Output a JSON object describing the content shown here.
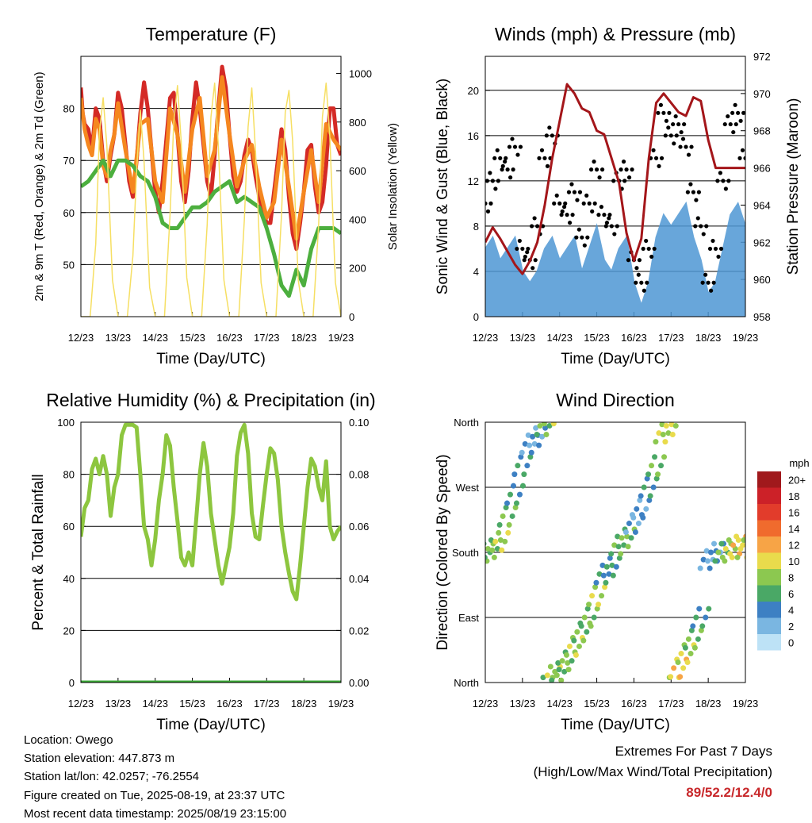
{
  "chart_data": [
    {
      "type": "line",
      "title": "Temperature (F)",
      "xlabel": "Time (Day/UTC)",
      "ylabel": "2m & 9m T (Red, Orange) & 2m Td (Green)",
      "y2label": "Solar Insolation (Yellow)",
      "xticks": [
        "12/23",
        "13/23",
        "14/23",
        "15/23",
        "16/23",
        "17/23",
        "18/23",
        "19/23"
      ],
      "xlim": [
        0,
        7
      ],
      "ylim": [
        40,
        90
      ],
      "yticks": [
        50,
        60,
        70,
        80
      ],
      "y2lim": [
        0,
        1070
      ],
      "y2ticks": [
        0,
        200,
        400,
        600,
        800,
        1000
      ],
      "grid": true,
      "series": [
        {
          "name": "2m T",
          "color": "#d42a26",
          "x": [
            0,
            0.05,
            0.1,
            0.2,
            0.3,
            0.4,
            0.5,
            0.6,
            0.7,
            0.8,
            0.9,
            1.0,
            1.1,
            1.2,
            1.3,
            1.4,
            1.5,
            1.6,
            1.7,
            1.8,
            1.9,
            2.0,
            2.1,
            2.2,
            2.3,
            2.4,
            2.5,
            2.6,
            2.7,
            2.8,
            2.9,
            3.0,
            3.1,
            3.2,
            3.3,
            3.4,
            3.5,
            3.6,
            3.7,
            3.8,
            3.9,
            4.0,
            4.1,
            4.2,
            4.3,
            4.4,
            4.5,
            4.6,
            4.7,
            4.8,
            4.9,
            5.0,
            5.1,
            5.2,
            5.3,
            5.4,
            5.5,
            5.6,
            5.7,
            5.8,
            5.9,
            6.0,
            6.1,
            6.2,
            6.3,
            6.4,
            6.5,
            6.6,
            6.7,
            6.8,
            6.9,
            7.0
          ],
          "y": [
            84,
            79,
            77,
            76,
            72,
            80,
            78,
            70,
            66,
            71,
            75,
            83,
            80,
            73,
            66,
            63,
            70,
            79,
            85,
            80,
            72,
            64,
            60,
            66,
            74,
            82,
            83,
            75,
            66,
            62,
            68,
            78,
            85,
            80,
            73,
            66,
            63,
            71,
            80,
            88,
            84,
            75,
            67,
            64,
            66,
            71,
            74,
            72,
            67,
            63,
            60,
            58,
            58,
            64,
            70,
            76,
            72,
            63,
            56,
            53,
            58,
            64,
            72,
            73,
            65,
            60,
            62,
            69,
            80,
            80,
            73,
            71
          ]
        },
        {
          "name": "9m T",
          "color": "#f5871f",
          "x": [
            0,
            0.1,
            0.2,
            0.3,
            0.4,
            0.5,
            0.6,
            0.7,
            0.8,
            0.9,
            1.0,
            1.2,
            1.4,
            1.6,
            1.8,
            2.0,
            2.2,
            2.4,
            2.6,
            2.8,
            3.0,
            3.2,
            3.4,
            3.6,
            3.8,
            4.0,
            4.2,
            4.4,
            4.6,
            4.8,
            5.0,
            5.2,
            5.4,
            5.6,
            5.8,
            6.0,
            6.2,
            6.4,
            6.6,
            6.8,
            7.0
          ],
          "y": [
            82,
            76,
            73,
            71,
            78,
            76,
            69,
            67,
            72,
            75,
            81,
            72,
            64,
            77,
            78,
            66,
            62,
            80,
            75,
            64,
            76,
            82,
            67,
            72,
            86,
            75,
            65,
            70,
            73,
            65,
            59,
            62,
            74,
            65,
            55,
            64,
            72,
            62,
            77,
            74,
            72
          ]
        },
        {
          "name": "2m Td",
          "color": "#4caf3e",
          "x": [
            0,
            0.2,
            0.4,
            0.6,
            0.8,
            1.0,
            1.2,
            1.4,
            1.6,
            1.8,
            2.0,
            2.2,
            2.4,
            2.6,
            2.8,
            3.0,
            3.2,
            3.4,
            3.6,
            3.8,
            4.0,
            4.2,
            4.4,
            4.6,
            4.8,
            5.0,
            5.2,
            5.4,
            5.6,
            5.8,
            6.0,
            6.2,
            6.4,
            6.6,
            6.8,
            7.0
          ],
          "y": [
            65,
            66,
            68,
            70,
            67,
            70,
            70,
            69,
            67,
            66,
            63,
            58,
            57,
            57,
            59,
            61,
            61,
            62,
            64,
            65,
            66,
            62,
            63,
            62,
            61,
            57,
            52,
            46,
            44,
            49,
            46,
            53,
            57,
            57,
            57,
            56
          ]
        },
        {
          "name": "Solar Insolation",
          "color": "#f6df63",
          "axis": "y2",
          "x": [
            0,
            0.25,
            0.4,
            0.5,
            0.6,
            0.7,
            0.85,
            1.0,
            1.25,
            1.4,
            1.5,
            1.6,
            1.7,
            1.85,
            2.0,
            2.25,
            2.4,
            2.5,
            2.6,
            2.7,
            2.85,
            3.0,
            3.25,
            3.4,
            3.5,
            3.6,
            3.7,
            3.85,
            4.0,
            4.25,
            4.4,
            4.5,
            4.6,
            4.7,
            4.85,
            5.0,
            5.25,
            5.4,
            5.5,
            5.6,
            5.7,
            5.85,
            6.0,
            6.25,
            6.4,
            6.5,
            6.6,
            6.7,
            6.85,
            7.0
          ],
          "y": [
            0,
            0,
            300,
            760,
            900,
            700,
            150,
            0,
            0,
            250,
            600,
            850,
            640,
            120,
            0,
            0,
            420,
            800,
            950,
            720,
            160,
            0,
            0,
            380,
            820,
            960,
            700,
            150,
            0,
            0,
            400,
            780,
            940,
            680,
            140,
            0,
            0,
            420,
            840,
            930,
            720,
            150,
            0,
            0,
            380,
            820,
            960,
            740,
            140,
            0
          ]
        }
      ]
    },
    {
      "type": "scatter",
      "title": "Winds (mph) & Pressure (mb)",
      "xlabel": "Time (Day/UTC)",
      "ylabel": "Sonic Wind & Gust (Blue, Black)",
      "y2label": "Station Pressure (Maroon)",
      "xticks": [
        "12/23",
        "13/23",
        "14/23",
        "15/23",
        "16/23",
        "17/23",
        "18/23",
        "19/23"
      ],
      "xlim": [
        0,
        7
      ],
      "ylim": [
        0,
        23
      ],
      "yticks": [
        0,
        4,
        8,
        12,
        16,
        20
      ],
      "y2lim": [
        958,
        972
      ],
      "y2ticks": [
        958,
        960,
        962,
        964,
        966,
        968,
        970,
        972
      ],
      "grid": true,
      "series": [
        {
          "name": "Sonic Wind",
          "color": "#4e97d4",
          "type": "area-band",
          "x": [
            0,
            0.2,
            0.4,
            0.6,
            0.8,
            1.0,
            1.2,
            1.4,
            1.6,
            1.8,
            2.0,
            2.2,
            2.4,
            2.6,
            2.8,
            3.0,
            3.2,
            3.4,
            3.6,
            3.8,
            4.0,
            4.2,
            4.4,
            4.6,
            4.8,
            5.0,
            5.2,
            5.4,
            5.6,
            5.8,
            6.0,
            6.2,
            6.4,
            6.6,
            6.8,
            7.0
          ],
          "y": [
            6,
            7,
            5,
            6,
            7,
            4,
            3,
            4,
            6,
            7,
            5,
            6,
            7,
            4,
            6,
            8,
            5,
            4,
            6,
            7,
            3,
            1,
            3,
            7,
            9,
            8,
            9,
            10,
            7,
            5,
            2,
            3,
            6,
            9,
            10,
            8
          ]
        },
        {
          "name": "Gust",
          "color": "#000000",
          "type": "scatter",
          "x": [
            0,
            0.2,
            0.4,
            0.6,
            0.8,
            1.0,
            1.2,
            1.4,
            1.6,
            1.8,
            2.0,
            2.2,
            2.4,
            2.6,
            2.8,
            3.0,
            3.2,
            3.4,
            3.6,
            3.8,
            4.0,
            4.2,
            4.4,
            4.6,
            4.8,
            5.0,
            5.2,
            5.4,
            5.6,
            5.8,
            6.0,
            6.2,
            6.4,
            6.6,
            6.8,
            7.0
          ],
          "y": [
            10,
            12,
            14,
            13,
            15,
            6,
            5,
            8,
            14,
            16,
            10,
            9,
            11,
            7,
            10,
            13,
            9,
            8,
            12,
            13,
            5,
            3,
            6,
            14,
            18,
            16,
            17,
            15,
            11,
            8,
            3,
            6,
            12,
            17,
            18,
            14
          ]
        },
        {
          "name": "Station Pressure",
          "color": "#a4161a",
          "axis": "y2",
          "x": [
            0,
            0.2,
            0.4,
            0.6,
            0.8,
            1.0,
            1.2,
            1.4,
            1.6,
            1.8,
            2.0,
            2.2,
            2.4,
            2.6,
            2.8,
            3.0,
            3.2,
            3.4,
            3.6,
            3.8,
            4.0,
            4.2,
            4.4,
            4.6,
            4.8,
            5.0,
            5.2,
            5.4,
            5.6,
            5.8,
            6.0,
            6.2,
            6.4,
            6.6,
            6.8,
            7.0
          ],
          "y": [
            962.0,
            962.8,
            962.2,
            961.5,
            960.8,
            960.3,
            961.0,
            962.0,
            964.0,
            966.5,
            968.5,
            970.5,
            970.0,
            969.2,
            969.0,
            968.0,
            967.8,
            966.5,
            965.2,
            962.5,
            961.0,
            962.2,
            966.5,
            969.5,
            970.0,
            969.5,
            969.0,
            968.8,
            969.8,
            969.6,
            967.5,
            966.0,
            966.0,
            966.0,
            966.0,
            966.0
          ]
        }
      ]
    },
    {
      "type": "line",
      "title": "Relative Humidity (%) & Precipitation (in)",
      "xlabel": "Time (Day/UTC)",
      "ylabel": "Percent & Total Rainfall",
      "xticks": [
        "12/23",
        "13/23",
        "14/23",
        "15/23",
        "16/23",
        "17/23",
        "18/23",
        "19/23"
      ],
      "xlim": [
        0,
        7
      ],
      "ylim": [
        0,
        100
      ],
      "yticks": [
        0,
        20,
        40,
        60,
        80,
        100
      ],
      "y2lim": [
        0,
        0.1
      ],
      "y2ticks": [
        "0.00",
        "0.02",
        "0.04",
        "0.06",
        "0.08",
        "0.10"
      ],
      "grid": true,
      "series": [
        {
          "name": "Relative Humidity",
          "color": "#8dc63f",
          "x": [
            0,
            0.1,
            0.2,
            0.3,
            0.4,
            0.5,
            0.6,
            0.7,
            0.8,
            0.9,
            1.0,
            1.1,
            1.2,
            1.3,
            1.4,
            1.5,
            1.6,
            1.7,
            1.8,
            1.9,
            2.0,
            2.1,
            2.2,
            2.3,
            2.4,
            2.5,
            2.6,
            2.7,
            2.8,
            2.9,
            3.0,
            3.1,
            3.2,
            3.3,
            3.4,
            3.5,
            3.6,
            3.7,
            3.8,
            3.9,
            4.0,
            4.1,
            4.2,
            4.3,
            4.4,
            4.5,
            4.6,
            4.7,
            4.8,
            4.9,
            5.0,
            5.1,
            5.2,
            5.3,
            5.4,
            5.5,
            5.6,
            5.7,
            5.8,
            5.9,
            6.0,
            6.1,
            6.2,
            6.3,
            6.4,
            6.5,
            6.6,
            6.7,
            6.8,
            6.9,
            7.0
          ],
          "y": [
            56,
            67,
            70,
            82,
            86,
            80,
            87,
            80,
            64,
            75,
            80,
            95,
            99,
            99,
            99,
            98,
            80,
            60,
            55,
            45,
            55,
            70,
            80,
            95,
            91,
            75,
            62,
            48,
            45,
            50,
            45,
            62,
            80,
            92,
            83,
            65,
            55,
            45,
            38,
            45,
            52,
            65,
            87,
            96,
            99,
            88,
            65,
            56,
            55,
            68,
            80,
            90,
            88,
            78,
            60,
            50,
            42,
            35,
            32,
            45,
            60,
            75,
            86,
            83,
            75,
            70,
            85,
            60,
            55,
            58,
            60
          ]
        },
        {
          "name": "Total Rainfall",
          "color": "#3aa935",
          "axis": "y2",
          "x": [
            0,
            7
          ],
          "y": [
            0,
            0
          ]
        }
      ]
    },
    {
      "type": "scatter",
      "title": "Wind Direction",
      "xlabel": "Time (Day/UTC)",
      "ylabel": "Direction (Colored By Speed)",
      "xticks": [
        "12/23",
        "13/23",
        "14/23",
        "15/23",
        "16/23",
        "17/23",
        "18/23",
        "19/23"
      ],
      "xlim": [
        0,
        7
      ],
      "yticks": [
        "North",
        "East",
        "South",
        "West",
        "North"
      ],
      "ylim": [
        0,
        360
      ],
      "grid": true,
      "legend": {
        "title": "mph",
        "position": "right",
        "labels": [
          "20+",
          "18",
          "16",
          "14",
          "12",
          "10",
          "8",
          "6",
          "4",
          "2",
          "0"
        ],
        "colors": [
          "#a0191c",
          "#cc2128",
          "#e23c2b",
          "#f06b2d",
          "#f7a446",
          "#e9db4c",
          "#8cc850",
          "#4aa866",
          "#3d80c3",
          "#7ab6e1",
          "#bde2f6"
        ]
      },
      "series": [
        {
          "name": "Direction",
          "x": [
            0,
            0.2,
            0.4,
            0.6,
            0.8,
            1.0,
            1.2,
            1.4,
            1.6,
            1.8,
            2.0,
            2.2,
            2.4,
            2.6,
            2.8,
            3.0,
            3.2,
            3.4,
            3.6,
            3.8,
            4.0,
            4.2,
            4.4,
            4.6,
            4.8,
            5.0,
            5.2,
            5.4,
            5.6,
            5.8,
            6.0,
            6.2,
            6.4,
            6.6,
            6.8,
            7.0
          ],
          "y": [
            180,
            185,
            195,
            230,
            260,
            300,
            330,
            340,
            355,
            10,
            15,
            30,
            50,
            70,
            90,
            120,
            150,
            160,
            190,
            200,
            220,
            240,
            270,
            300,
            345,
            355,
            20,
            40,
            60,
            90,
            170,
            180,
            180,
            185,
            190,
            185
          ],
          "speed": [
            6,
            7,
            8,
            6,
            5,
            4,
            3,
            3,
            6,
            8,
            6,
            7,
            8,
            6,
            7,
            9,
            5,
            4,
            6,
            7,
            3,
            2,
            4,
            7,
            9,
            8,
            10,
            9,
            7,
            5,
            2,
            3,
            6,
            9,
            10,
            8
          ]
        }
      ]
    }
  ],
  "info": {
    "location": "Location: Owego",
    "elevation": "Station elevation: 447.873 m",
    "latlon": "Station lat/lon: 42.0257; -76.2554",
    "created": "Figure created on Tue, 2025-08-19, at 23:37 UTC",
    "recent": "Most recent data timestamp: 2025/08/19 23:15:00"
  },
  "extremes": {
    "line1": "Extremes For Past 7 Days",
    "line2": "(High/Low/Max Wind/Total Precipitation)",
    "values": "89/52.2/12.4/0"
  }
}
